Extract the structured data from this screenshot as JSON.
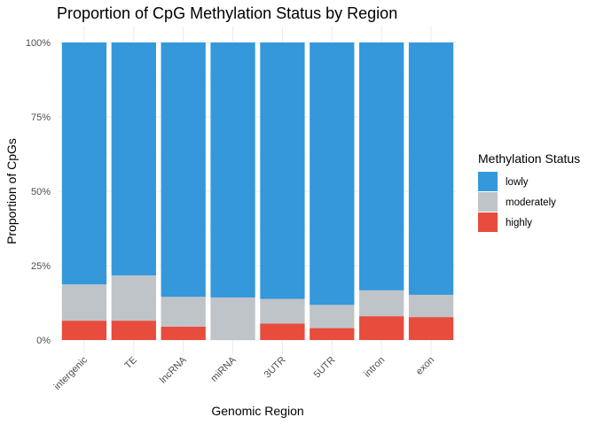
{
  "chart_data": {
    "type": "bar",
    "stacked": true,
    "title": "Proportion of CpG Methylation Status by Region",
    "xlabel": "Genomic Region",
    "ylabel": "Proportion of CpGs",
    "ylim": [
      0,
      1
    ],
    "yticks": [
      0,
      0.25,
      0.5,
      0.75,
      1
    ],
    "ytick_labels": [
      "0%",
      "25%",
      "50%",
      "75%",
      "100%"
    ],
    "grid": true,
    "legend": {
      "title": "Methylation Status",
      "position": "right"
    },
    "categories": [
      "intergenic",
      "TE",
      "lncRNA",
      "miRNA",
      "3UTR",
      "5UTR",
      "intron",
      "exon"
    ],
    "series": [
      {
        "name": "highly",
        "color": "#E74C3C",
        "values": [
          0.065,
          0.065,
          0.045,
          0.0,
          0.055,
          0.04,
          0.08,
          0.077
        ]
      },
      {
        "name": "moderately",
        "color": "#BFC4C9",
        "values": [
          0.122,
          0.152,
          0.1,
          0.143,
          0.083,
          0.078,
          0.087,
          0.075
        ]
      },
      {
        "name": "lowly",
        "color": "#3498DB",
        "values": [
          0.813,
          0.783,
          0.855,
          0.857,
          0.862,
          0.882,
          0.833,
          0.848
        ]
      }
    ],
    "legend_order": [
      "lowly",
      "moderately",
      "highly"
    ]
  }
}
